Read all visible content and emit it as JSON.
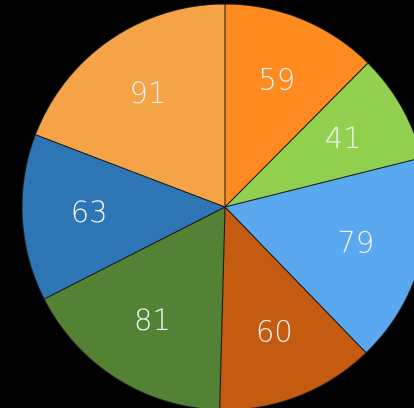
{
  "chart_data": {
    "type": "pie",
    "categories": [
      "",
      "",
      "",
      "",
      "",
      "",
      ""
    ],
    "values": [
      59,
      41,
      79,
      60,
      81,
      63,
      91
    ],
    "colors": [
      "#ff8a1f",
      "#92d050",
      "#5aa9f0",
      "#c55a11",
      "#548235",
      "#2e75b6",
      "#f4a347"
    ],
    "start_angle_deg": 0,
    "direction": "clockwise",
    "data_labels": true,
    "legend": "none",
    "title": ""
  }
}
